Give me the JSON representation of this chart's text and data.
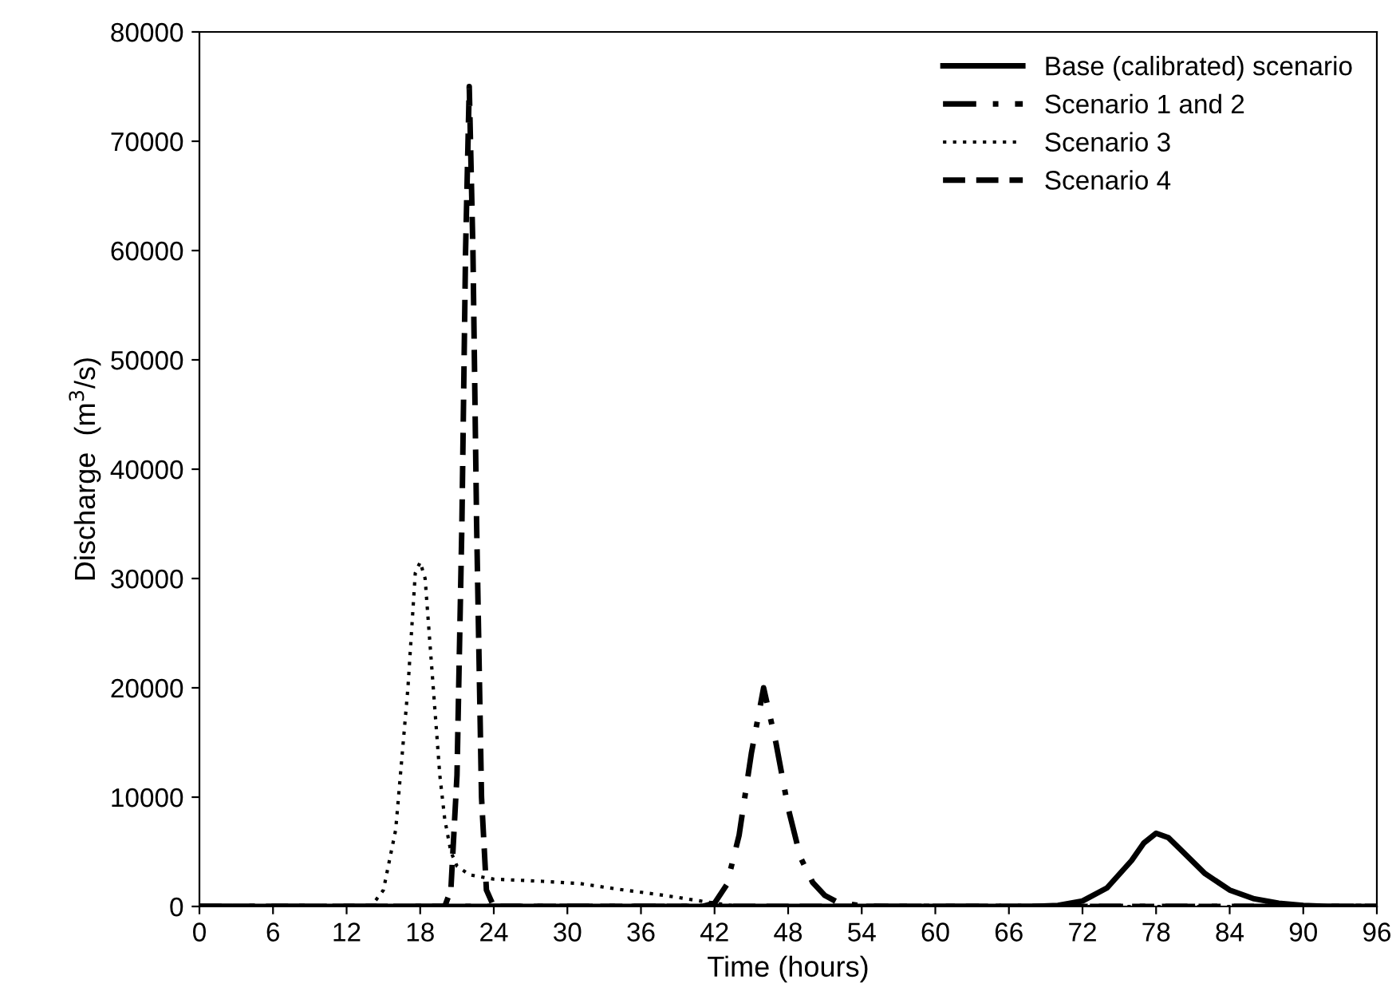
{
  "chart_data": {
    "type": "line",
    "xlabel": "Time (hours)",
    "ylabel": "Discharge  (m$^{3}$/s)",
    "xlim": [
      0,
      96
    ],
    "xticks": [
      0,
      6,
      12,
      18,
      24,
      30,
      36,
      42,
      48,
      54,
      60,
      66,
      72,
      78,
      84,
      90,
      96
    ],
    "ylim": [
      0,
      80000
    ],
    "yticks": [
      0,
      10000,
      20000,
      30000,
      40000,
      50000,
      60000,
      70000,
      80000
    ],
    "grid": false,
    "legend": "top right",
    "marker": "none",
    "series": [
      {
        "name": "Base (calibrated) scenario",
        "color": "#000000",
        "line_style": "solid",
        "x": [
          0,
          68,
          70,
          72,
          74,
          76,
          77,
          78,
          79,
          80,
          82,
          84,
          86,
          88,
          90,
          92,
          96
        ],
        "values": [
          0,
          0,
          100,
          500,
          1700,
          4200,
          5800,
          6700,
          6300,
          5200,
          3000,
          1500,
          700,
          300,
          100,
          0,
          0
        ]
      },
      {
        "name": "Scenario 1 and 2",
        "color": "#000000",
        "line_style": "dashdot",
        "x": [
          0,
          41,
          42,
          43,
          44,
          45,
          46,
          47,
          48,
          49,
          50,
          51,
          52,
          54,
          56,
          96
        ],
        "values": [
          0,
          0,
          300,
          2000,
          6500,
          14000,
          20000,
          15000,
          9000,
          4500,
          2200,
          1000,
          400,
          50,
          0,
          0
        ]
      },
      {
        "name": "Scenario 3",
        "color": "#000000",
        "line_style": "dotted",
        "x": [
          0,
          14,
          15,
          16,
          17,
          17.6,
          18,
          18.4,
          19,
          19.6,
          20,
          20.5,
          21,
          22,
          24,
          28,
          31,
          34,
          38,
          42,
          44,
          96
        ],
        "values": [
          0,
          0,
          1500,
          7000,
          20000,
          30500,
          31500,
          30000,
          21000,
          12000,
          8000,
          5000,
          3700,
          2900,
          2500,
          2300,
          2100,
          1600,
          1000,
          300,
          0,
          0
        ]
      },
      {
        "name": "Scenario 4",
        "color": "#000000",
        "line_style": "dashed",
        "x": [
          0,
          20,
          20.5,
          21,
          21.4,
          21.7,
          22,
          22.3,
          22.6,
          23,
          23.4,
          24,
          96
        ],
        "values": [
          0,
          0,
          1500,
          12000,
          35000,
          60000,
          75000,
          60000,
          35000,
          10000,
          1500,
          0,
          0
        ]
      }
    ]
  }
}
